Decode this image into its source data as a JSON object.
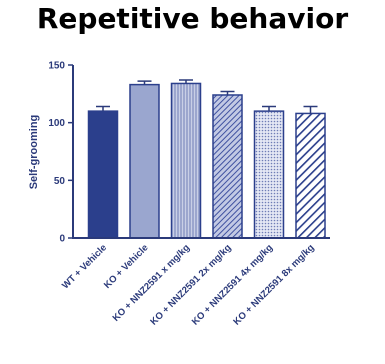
{
  "chart_data": {
    "type": "bar",
    "title": "Repetitive behavior",
    "xlabel": "",
    "ylabel": "Self-grooming",
    "ylim": [
      0,
      150
    ],
    "yticks": [
      0,
      50,
      100,
      150
    ],
    "grid": false,
    "legend": "none",
    "categories": [
      "WT + Vehicle",
      "KO + Vehicle",
      "KO + NNZ2591 x mg/kg",
      "KO + NNZ2591 2x mg/kg",
      "KO + NNZ2591 4x mg/kg",
      "KO + NNZ2591 8x mg/kg"
    ],
    "values": [
      110,
      133,
      134,
      124,
      110,
      108
    ],
    "errors": [
      4,
      3,
      3,
      3,
      4,
      6
    ],
    "bar_styles": [
      "solid-dark",
      "solid-light",
      "vertical-lines",
      "dense-diagonal",
      "fine-dots",
      "bold-diagonal"
    ],
    "colors": {
      "dark": "#2b3f8c",
      "light": "#9aa6cf",
      "axis": "#2b3a7a"
    }
  }
}
